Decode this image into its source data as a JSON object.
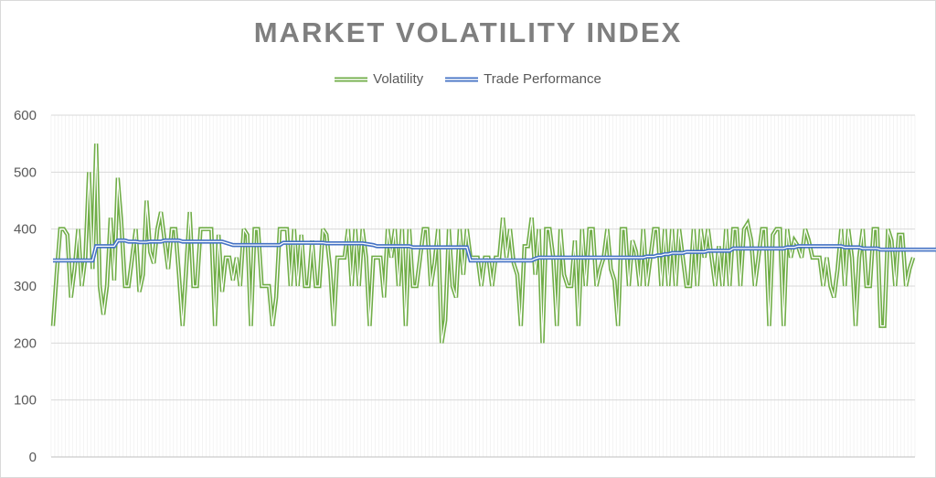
{
  "chart_data": {
    "type": "line",
    "title": "MARKET VOLATILITY INDEX",
    "xlabel": "",
    "ylabel": "",
    "ylim": [
      0,
      600
    ],
    "yticks": [
      0,
      100,
      200,
      300,
      400,
      500,
      600
    ],
    "grid": "vertical and horizontal gridlines",
    "legend_position": "top",
    "colors": {
      "volatility": "#70ad47",
      "trade_performance": "#4472c4"
    },
    "series": [
      {
        "name": "Volatility",
        "values": [
          230,
          320,
          400,
          400,
          390,
          280,
          330,
          400,
          300,
          350,
          500,
          330,
          550,
          300,
          250,
          300,
          420,
          310,
          490,
          410,
          300,
          300,
          350,
          400,
          290,
          320,
          450,
          360,
          340,
          400,
          430,
          380,
          330,
          400,
          400,
          320,
          230,
          330,
          430,
          300,
          300,
          400,
          400,
          400,
          400,
          230,
          390,
          290,
          350,
          350,
          310,
          350,
          300,
          400,
          390,
          230,
          400,
          400,
          300,
          300,
          300,
          230,
          280,
          400,
          400,
          400,
          300,
          400,
          300,
          390,
          300,
          300,
          380,
          300,
          300,
          400,
          390,
          330,
          230,
          350,
          350,
          350,
          400,
          300,
          400,
          300,
          400,
          350,
          230,
          350,
          350,
          350,
          280,
          400,
          350,
          400,
          300,
          400,
          230,
          400,
          300,
          300,
          350,
          400,
          400,
          300,
          340,
          400,
          200,
          240,
          400,
          300,
          280,
          400,
          320,
          400,
          350,
          350,
          350,
          300,
          350,
          350,
          300,
          350,
          350,
          420,
          350,
          400,
          340,
          320,
          230,
          370,
          370,
          420,
          320,
          400,
          200,
          400,
          400,
          350,
          230,
          400,
          320,
          300,
          300,
          380,
          230,
          400,
          300,
          400,
          400,
          300,
          330,
          350,
          400,
          330,
          310,
          230,
          400,
          400,
          300,
          380,
          360,
          300,
          400,
          300,
          350,
          400,
          400,
          300,
          400,
          300,
          400,
          300,
          400,
          350,
          300,
          300,
          400,
          300,
          400,
          350,
          400,
          350,
          300,
          370,
          300,
          400,
          300,
          400,
          400,
          300,
          400,
          410,
          380,
          300,
          350,
          400,
          400,
          230,
          390,
          400,
          400,
          230,
          400,
          350,
          380,
          370,
          350,
          400,
          380,
          350,
          350,
          350,
          300,
          350,
          300,
          280,
          330,
          400,
          300,
          400,
          350,
          230,
          350,
          400,
          300,
          300,
          400,
          400,
          230,
          230,
          400,
          380,
          300,
          390,
          390,
          300,
          330,
          350
        ]
      },
      {
        "name": "Trade Performance",
        "values": [
          345,
          345,
          345,
          345,
          345,
          345,
          345,
          345,
          345,
          345,
          345,
          345,
          370,
          370,
          370,
          370,
          370,
          370,
          380,
          380,
          380,
          378,
          378,
          378,
          377,
          377,
          377,
          378,
          378,
          378,
          378,
          380,
          380,
          380,
          380,
          380,
          378,
          378,
          378,
          378,
          378,
          378,
          378,
          378,
          378,
          378,
          378,
          378,
          376,
          374,
          372,
          372,
          372,
          372,
          372,
          372,
          372,
          372,
          372,
          372,
          372,
          372,
          372,
          372,
          376,
          376,
          376,
          376,
          376,
          376,
          376,
          376,
          376,
          376,
          376,
          376,
          375,
          375,
          375,
          375,
          375,
          375,
          375,
          375,
          375,
          375,
          375,
          374,
          373,
          372,
          370,
          370,
          370,
          370,
          370,
          370,
          370,
          370,
          370,
          370,
          368,
          368,
          368,
          368,
          368,
          368,
          368,
          368,
          368,
          368,
          368,
          368,
          368,
          368,
          368,
          368,
          345,
          345,
          345,
          345,
          345,
          345,
          345,
          345,
          345,
          345,
          345,
          345,
          345,
          345,
          345,
          345,
          345,
          345,
          348,
          350,
          350,
          350,
          350,
          350,
          350,
          350,
          350,
          350,
          350,
          350,
          350,
          350,
          350,
          350,
          350,
          350,
          350,
          350,
          350,
          350,
          350,
          350,
          350,
          350,
          350,
          350,
          350,
          350,
          350,
          352,
          352,
          352,
          354,
          354,
          356,
          356,
          358,
          358,
          358,
          358,
          360,
          360,
          360,
          360,
          360,
          360,
          362,
          362,
          362,
          362,
          362,
          362,
          362,
          366,
          366,
          366,
          366,
          366,
          366,
          366,
          366,
          366,
          366,
          366,
          366,
          366,
          366,
          366,
          368,
          368,
          368,
          370,
          370,
          370,
          370,
          370,
          370,
          370,
          370,
          370,
          370,
          370,
          370,
          370,
          368,
          368,
          368,
          368,
          368,
          366,
          366,
          366,
          366,
          366,
          364,
          364,
          364,
          364,
          364,
          364,
          364,
          364,
          364,
          364,
          364,
          364,
          364,
          364,
          364,
          364,
          364,
          364,
          364
        ]
      }
    ]
  }
}
